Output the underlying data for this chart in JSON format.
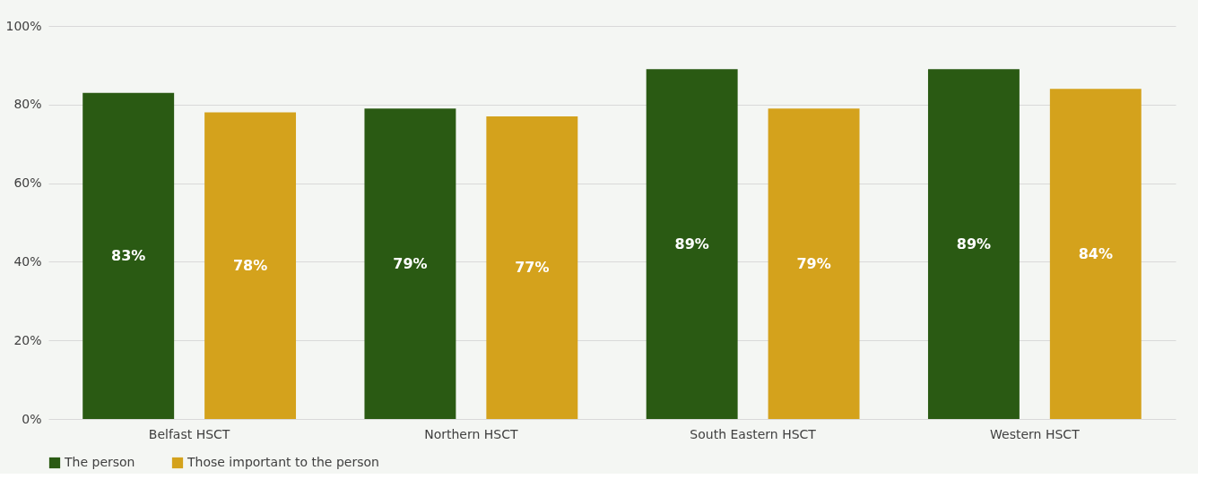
{
  "chart_data": {
    "type": "bar",
    "categories": [
      "Belfast HSCT",
      "Northern HSCT",
      "South Eastern HSCT",
      "Western HSCT"
    ],
    "series": [
      {
        "name": "The person",
        "color": "#2a5a13",
        "values": [
          83,
          79,
          89,
          89
        ],
        "value_labels": [
          "83%",
          "79%",
          "89%",
          "89%"
        ]
      },
      {
        "name": "Those important to the person",
        "color": "#d4a21c",
        "values": [
          78,
          77,
          79,
          84
        ],
        "value_labels": [
          "78%",
          "77%",
          "79%",
          "84%"
        ]
      }
    ],
    "ylim": [
      0,
      100
    ],
    "yticks": [
      {
        "value": 0,
        "label": "0%"
      },
      {
        "value": 20,
        "label": "20%"
      },
      {
        "value": 40,
        "label": "40%"
      },
      {
        "value": 60,
        "label": "60%"
      },
      {
        "value": 80,
        "label": "80%"
      },
      {
        "value": 100,
        "label": "100%"
      }
    ],
    "grid": "y",
    "legend": "bottom"
  }
}
